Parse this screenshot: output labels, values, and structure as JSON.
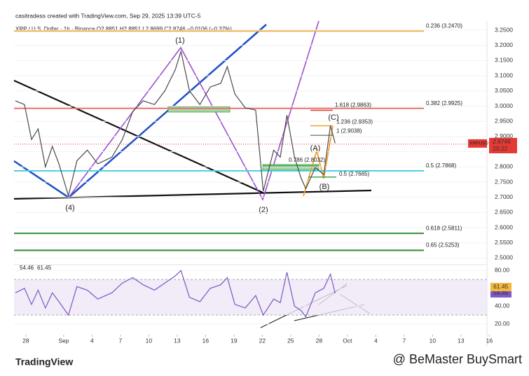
{
  "header": {
    "credit": "casitradess created with TradingView.com, Sep 29, 2025 13:39 UTC-5",
    "symbol": "XRP / U.S. Dollar · 1h · Binance  O2.8851  H2.8851  L2.8699  C2.8746  −0.0106 (−0.37%)"
  },
  "chart_data": [
    {
      "type": "line",
      "x": [
        -1.1,
        -0.15,
        0.6,
        1.3,
        2.07,
        2.8,
        3.5,
        4.5,
        5.4,
        6.5,
        7.6,
        9.1,
        10.2,
        11.3,
        12.4,
        13.6,
        14.7,
        15.8,
        16.4,
        17.3,
        18.4,
        19.5,
        20.6,
        21.3,
        22.1,
        23.2,
        24.3,
        25.1,
        26.2,
        26.9,
        27.6,
        28.4,
        29.1,
        29.6,
        30.6,
        31.5,
        32.2,
        32.7
      ],
      "series": [
        {
          "name": "XRPUSD",
          "color": "#4a4a4a",
          "values": [
            3.017,
            3.005,
            2.89,
            2.925,
            2.8,
            2.867,
            2.81,
            2.705,
            2.82,
            2.855,
            2.81,
            2.832,
            2.89,
            2.982,
            3.017,
            3.005,
            3.05,
            3.12,
            3.18,
            3.05,
            3.005,
            3.063,
            3.075,
            3.13,
            3.04,
            2.994,
            2.987,
            2.72,
            2.855,
            2.832,
            2.97,
            2.832,
            2.763,
            2.728,
            2.798,
            2.775,
            2.936,
            2.878
          ]
        }
      ],
      "xlim": [
        -1.25,
        48.75
      ],
      "xticks": [
        {
          "value": 0,
          "label": "28"
        },
        {
          "value": 4,
          "label": "Sep"
        },
        {
          "value": 7,
          "label": "4"
        },
        {
          "value": 10,
          "label": "7"
        },
        {
          "value": 13,
          "label": "10"
        },
        {
          "value": 16,
          "label": "13"
        },
        {
          "value": 19,
          "label": "16"
        },
        {
          "value": 22,
          "label": "19"
        },
        {
          "value": 25,
          "label": "22"
        },
        {
          "value": 28,
          "label": "25"
        },
        {
          "value": 31,
          "label": "28"
        },
        {
          "value": 34,
          "label": "Oct"
        },
        {
          "value": 37,
          "label": "4"
        },
        {
          "value": 40,
          "label": "7"
        },
        {
          "value": 43,
          "label": "10"
        },
        {
          "value": 46,
          "label": "13"
        },
        {
          "value": 49,
          "label": "16"
        }
      ],
      "ylim": [
        2.485,
        3.28
      ],
      "yticks": [
        {
          "value": 2.5,
          "label": "2.5000"
        },
        {
          "value": 2.55,
          "label": "2.5500"
        },
        {
          "value": 2.6,
          "label": "2.6000"
        },
        {
          "value": 2.65,
          "label": "2.6500"
        },
        {
          "value": 2.7,
          "label": "2.7000"
        },
        {
          "value": 2.75,
          "label": "2.7500"
        },
        {
          "value": 2.8,
          "label": "2.8000"
        },
        {
          "value": 2.85,
          "label": "2.8500"
        },
        {
          "value": 2.9,
          "label": "2.9000"
        },
        {
          "value": 2.95,
          "label": "2.9500"
        },
        {
          "value": 3.0,
          "label": "3.0000"
        },
        {
          "value": 3.05,
          "label": "3.0500"
        },
        {
          "value": 3.1,
          "label": "3.1000"
        },
        {
          "value": 3.15,
          "label": "3.1500"
        },
        {
          "value": 3.2,
          "label": "3.2000"
        },
        {
          "value": 3.25,
          "label": "3.2500"
        }
      ],
      "levels": [
        {
          "label": "0.236 (3.2470)",
          "value": 3.247,
          "color": "#f0b45a"
        },
        {
          "label": "0.382 (2.9925)",
          "value": 2.9925,
          "color": "#e57373"
        },
        {
          "label": "0.5 (2.7868)",
          "value": 2.7868,
          "color": "#4dd0e1"
        },
        {
          "label": "0.618 (2.5811)",
          "value": 2.5811,
          "color": "#2e8b2e"
        },
        {
          "label": "0.65 (2.5253)",
          "value": 2.5253,
          "color": "#2e8b2e"
        },
        {
          "label": "1.618 (2.9863)",
          "value": 2.9863,
          "color": "#e53935"
        },
        {
          "label": "1.236 (2.9353)",
          "value": 2.9353,
          "color": "#f0a030"
        },
        {
          "label": "1 (2.9038)",
          "value": 2.9038,
          "color": "#888888"
        },
        {
          "label": "0.786 (2.8032)",
          "value": 2.8032,
          "color": "#43a047"
        },
        {
          "label": "0.5 (2.7665)",
          "value": 2.7665,
          "color": "#43a047"
        }
      ],
      "wave_labels": [
        "(1)",
        "(2)",
        "(4)",
        "(A)",
        "(B)",
        "(C)"
      ],
      "price_tag": {
        "symbol": "XRPUSD",
        "price": 2.8746,
        "countdown": "20:22",
        "color": "#e53935"
      }
    },
    {
      "type": "line",
      "x": [
        -1.1,
        -0.15,
        0.6,
        1.3,
        2.07,
        2.8,
        3.5,
        4.5,
        5.4,
        6.5,
        7.6,
        9.1,
        10.2,
        11.3,
        12.4,
        13.6,
        14.7,
        15.8,
        16.4,
        17.3,
        18.4,
        19.5,
        20.6,
        21.3,
        22.1,
        23.2,
        24.3,
        25.1,
        26.2,
        26.9,
        27.6,
        28.4,
        29.1,
        29.6,
        30.6,
        31.5,
        32.2,
        32.7
      ],
      "series": [
        {
          "name": "RSI",
          "color": "#7e57c2",
          "values": [
            55,
            60,
            42,
            58,
            38,
            55,
            45,
            30,
            62,
            58,
            48,
            55,
            66,
            72,
            64,
            58,
            66,
            74,
            80,
            50,
            45,
            60,
            64,
            72,
            42,
            38,
            52,
            30,
            48,
            44,
            78,
            40,
            35,
            28,
            55,
            60,
            76,
            54.46
          ]
        }
      ],
      "legend_values": [
        {
          "value": 54.46,
          "color": "#7e57c2"
        },
        {
          "value": 61.45,
          "color": "#f5b73b"
        }
      ],
      "ylim": [
        8,
        85
      ],
      "yticks": [
        {
          "value": 20,
          "label": "20.00"
        },
        {
          "value": 40,
          "label": "40.00"
        },
        {
          "value": 60,
          "label": "60.00"
        },
        {
          "value": 80,
          "label": "80.00"
        }
      ],
      "band": [
        30,
        70
      ]
    }
  ],
  "footer": {
    "logo": "TradingView",
    "watermark": "@ BeMaster BuySmart"
  }
}
